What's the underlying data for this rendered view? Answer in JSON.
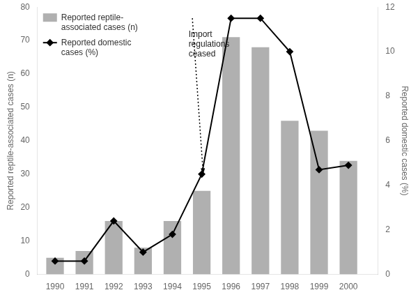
{
  "chart_data": {
    "type": "bar",
    "x": [
      1990,
      1991,
      1992,
      1993,
      1994,
      1995,
      1996,
      1997,
      1998,
      1999,
      2000
    ],
    "xlim": [
      1989.4,
      2001.0
    ],
    "xticks": [
      1990,
      1991,
      1992,
      1993,
      1994,
      1995,
      1996,
      1997,
      1998,
      1999,
      2000
    ],
    "ylabel": "Reported reptile-associated cases (n)",
    "ylim": [
      0,
      80
    ],
    "yticks": [
      0,
      10,
      20,
      30,
      40,
      50,
      60,
      70,
      80
    ],
    "y2label": "Reported domestic cases (%)",
    "y2lim": [
      0,
      12
    ],
    "y2ticks": [
      0,
      2,
      4,
      6,
      8,
      10,
      12
    ],
    "grid": false,
    "legend": "upper left",
    "series": [
      {
        "name": "Reported reptile-\nassociated cases (n)",
        "type": "bar",
        "color": "#b0b0b0",
        "values": [
          5,
          7,
          16,
          8,
          16,
          25,
          71,
          68,
          46,
          43,
          34
        ]
      },
      {
        "name": "Reported domestic\ncases (%)",
        "type": "line",
        "color": "#000000",
        "marker": "diamond",
        "axis": "y2",
        "values": [
          0.6,
          0.6,
          2.4,
          1.0,
          1.8,
          4.5,
          11.5,
          11.5,
          10.0,
          4.7,
          4.9
        ]
      }
    ],
    "annotations": [
      {
        "text": "Import\nregulations\nceased",
        "x": 1994.55,
        "y": 73
      },
      {
        "type": "arrow",
        "axis": "y2",
        "x": 1994.68,
        "y": 11.5,
        "x_end": 1995.05,
        "y_end": 4.5,
        "line_style": "dotted"
      }
    ]
  }
}
